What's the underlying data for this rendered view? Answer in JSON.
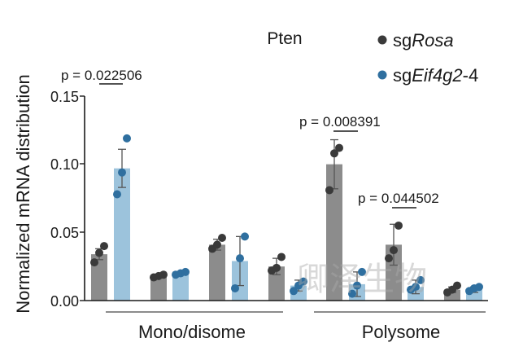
{
  "chart_data": {
    "type": "bar",
    "title": "Pten",
    "ylabel": "Normalized  mRNA distribution",
    "ylim": [
      0,
      0.15
    ],
    "yticks": [
      "0.00",
      "0.05",
      "0.10",
      "0.15"
    ],
    "grid": false,
    "legend_placement": "top-right",
    "legend": [
      {
        "prefix": "sg",
        "italic": "Rosa",
        "suffix": "",
        "color": "#3a3a3a"
      },
      {
        "prefix": "sg",
        "italic": "Eif4g2",
        "suffix": "-4",
        "color": "#2f6f9f"
      }
    ],
    "series": [
      {
        "bar_color": "#8c8c8c",
        "dot_color": "#3a3a3a"
      },
      {
        "bar_color": "#9cc3dc",
        "dot_color": "#2f6f9f"
      }
    ],
    "fractions": [
      {
        "means": [
          0.034,
          0.097
        ],
        "sd": [
          0.004,
          0.014
        ],
        "points": [
          [
            0.028,
            0.035,
            0.04
          ],
          [
            0.078,
            0.094,
            0.119
          ]
        ]
      },
      {
        "means": [
          0.018,
          0.02
        ],
        "sd": [
          0.001,
          0.001
        ],
        "points": [
          [
            0.017,
            0.018,
            0.019
          ],
          [
            0.019,
            0.02,
            0.021
          ]
        ]
      },
      {
        "means": [
          0.041,
          0.029
        ],
        "sd": [
          0.004,
          0.018
        ],
        "points": [
          [
            0.038,
            0.041,
            0.046
          ],
          [
            0.009,
            0.031,
            0.047
          ]
        ]
      },
      {
        "means": [
          0.025,
          0.011
        ],
        "sd": [
          0.006,
          0.004
        ],
        "points": [
          [
            0.022,
            0.024,
            0.032
          ],
          [
            0.007,
            0.011,
            0.014
          ]
        ]
      },
      {
        "means": [
          0.1,
          0.012
        ],
        "sd": [
          0.018,
          0.009
        ],
        "points": [
          [
            0.081,
            0.108,
            0.112
          ],
          [
            0.005,
            0.011,
            0.021
          ]
        ]
      },
      {
        "means": [
          0.041,
          0.01
        ],
        "sd": [
          0.015,
          0.005
        ],
        "points": [
          [
            0.031,
            0.037,
            0.055
          ],
          [
            0.008,
            0.01,
            0.015
          ]
        ]
      },
      {
        "means": [
          0.008,
          0.008
        ],
        "sd": [
          0.002,
          0.002
        ],
        "points": [
          [
            0.006,
            0.008,
            0.011
          ],
          [
            0.007,
            0.009,
            0.01
          ]
        ]
      }
    ],
    "groups": [
      {
        "label": "Mono/disome"
      },
      {
        "label": "Polysome"
      }
    ],
    "annotations": [
      {
        "text": "p = 0.022506"
      },
      {
        "text": "p = 0.008391"
      },
      {
        "text": "p = 0.044502"
      }
    ],
    "watermark": "卿泽生物"
  }
}
